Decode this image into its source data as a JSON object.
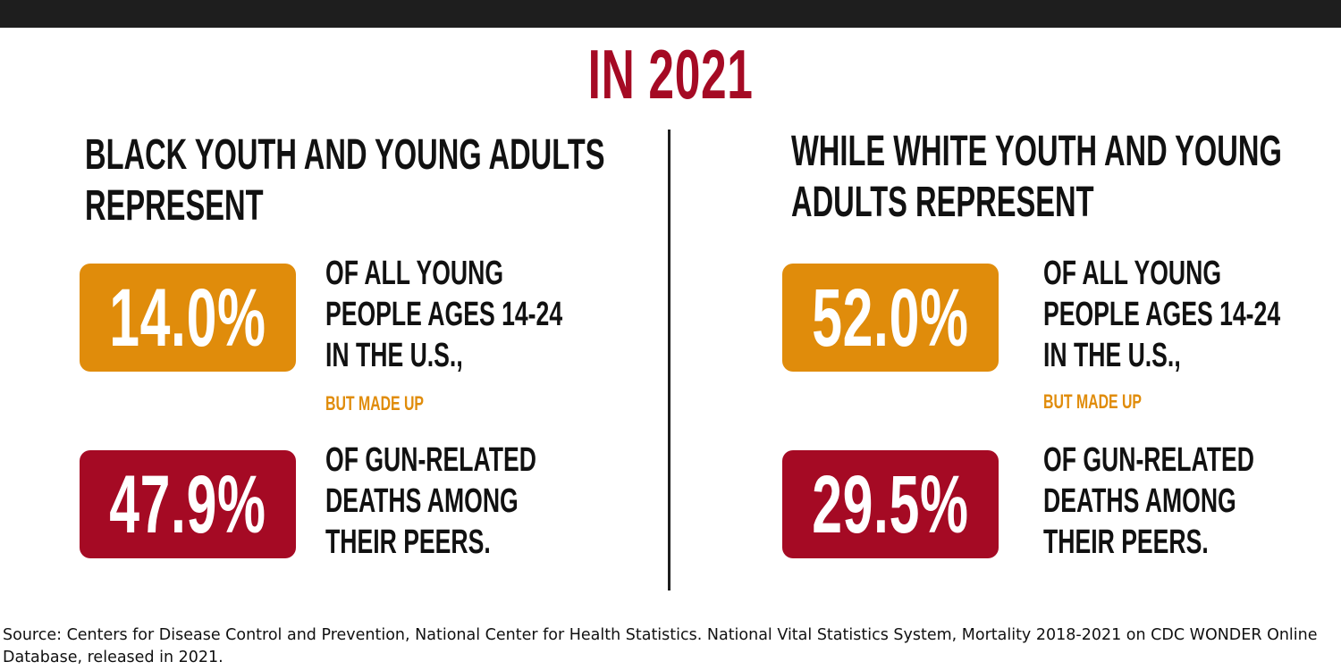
{
  "title": "IN 2021",
  "left": {
    "heading_line1": "BLACK YOUTH AND YOUNG ADULTS",
    "heading_line2": "REPRESENT",
    "population_pct": "14.0%",
    "population_desc_line1": "OF ALL YOUNG",
    "population_desc_line2": "PEOPLE AGES 14-24",
    "population_desc_line3": "IN THE U.S.,",
    "connector": "BUT MADE UP",
    "deaths_pct": "47.9%",
    "deaths_desc_line1": "OF GUN-RELATED",
    "deaths_desc_line2": "DEATHS AMONG",
    "deaths_desc_line3": "THEIR PEERS."
  },
  "right": {
    "heading_line1": "WHILE WHITE YOUTH AND YOUNG",
    "heading_line2": "ADULTS REPRESENT",
    "population_pct": "52.0%",
    "population_desc_line1": "OF ALL YOUNG",
    "population_desc_line2": "PEOPLE AGES 14-24",
    "population_desc_line3": "IN THE U.S.,",
    "connector": "BUT MADE UP",
    "deaths_pct": "29.5%",
    "deaths_desc_line1": "OF GUN-RELATED",
    "deaths_desc_line2": "DEATHS AMONG",
    "deaths_desc_line3": "THEIR PEERS."
  },
  "source": "Source: Centers for Disease Control and Prevention, National Center for Health Statistics. National Vital Statistics System, Mortality 2018-2021 on CDC WONDER Online Database, released in 2021.",
  "colors": {
    "accent_red": "#a50a24",
    "accent_orange": "#e08c0b",
    "top_bar": "#1e1e1e"
  }
}
